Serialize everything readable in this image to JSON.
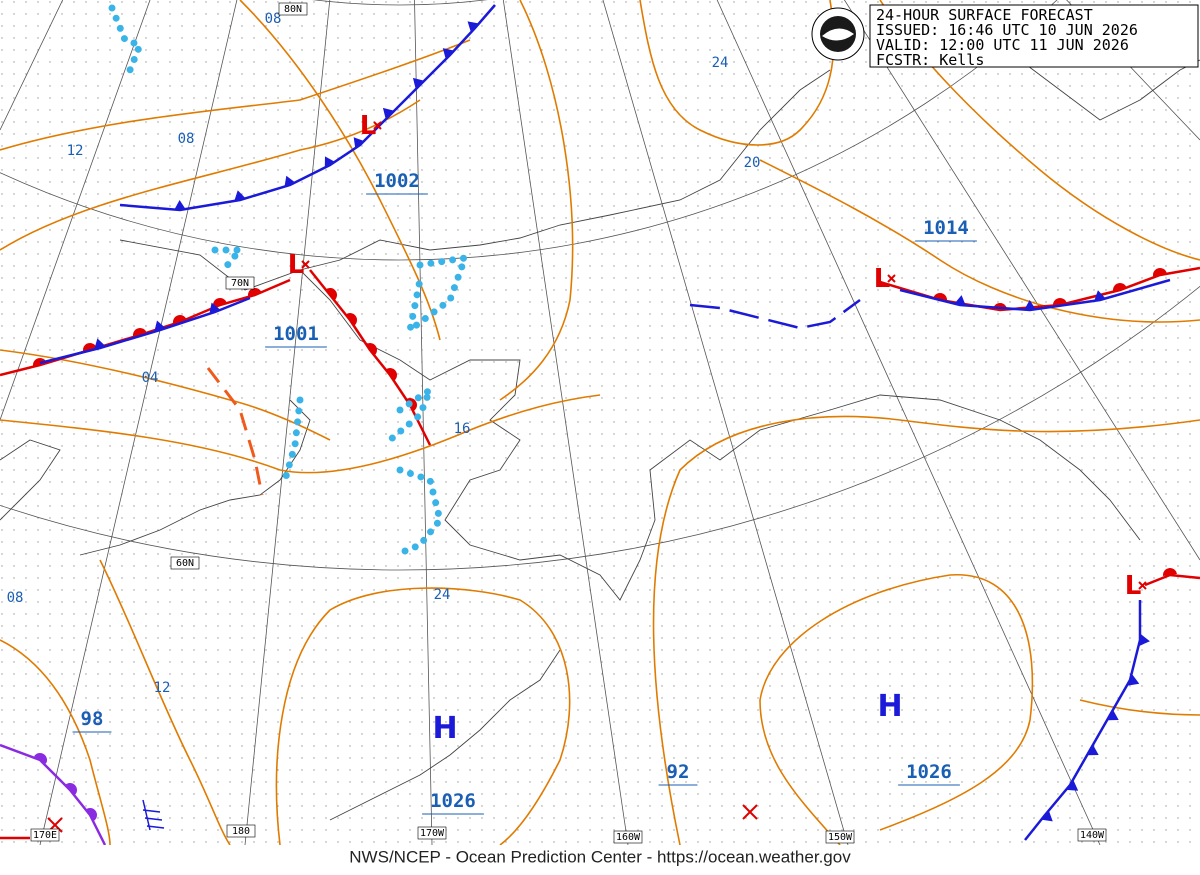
{
  "header": {
    "lines": [
      "24-HOUR SURFACE FORECAST",
      "ISSUED: 16:46 UTC 10 JUN 2026",
      "VALID:  12:00 UTC 11 JUN 2026",
      "FCSTR:  Kells"
    ]
  },
  "pressure_labels": [
    "1002",
    "1001",
    "1014",
    "98",
    "1026",
    "92",
    "1026"
  ],
  "isobar_labels": [
    "08",
    "08",
    "12",
    "04",
    "16",
    "24",
    "08",
    "12",
    "24",
    "20"
  ],
  "grid_labels": [
    "80N",
    "70N",
    "60N",
    "180",
    "170W",
    "160W",
    "150W",
    "140W",
    "170E"
  ],
  "highs": [
    "H",
    "H"
  ],
  "lows": [
    "L",
    "L",
    "L",
    "L"
  ],
  "footer": "NWS/NCEP - Ocean Prediction Center - https://ocean.weather.gov"
}
